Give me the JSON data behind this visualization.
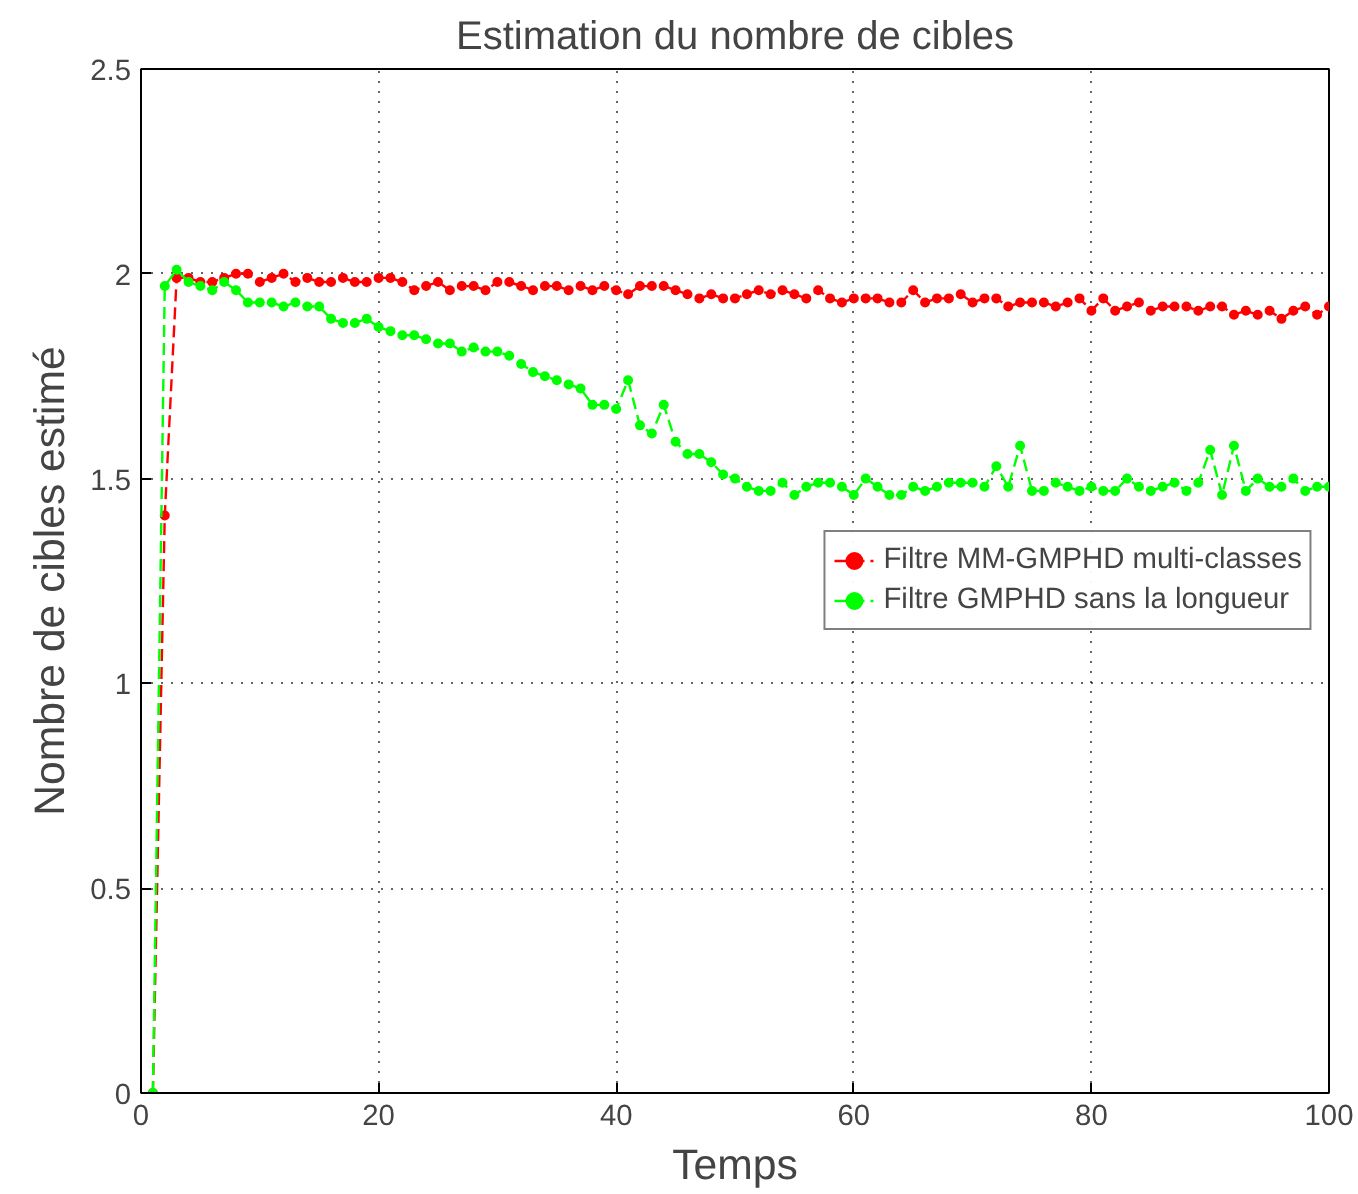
{
  "chart_data": {
    "type": "line",
    "title": "Estimation du nombre de cibles",
    "xlabel": "Temps",
    "ylabel": "Nombre de cibles estimé",
    "x": [
      1,
      2,
      3,
      4,
      5,
      6,
      7,
      8,
      9,
      10,
      11,
      12,
      13,
      14,
      15,
      16,
      17,
      18,
      19,
      20,
      21,
      22,
      23,
      24,
      25,
      26,
      27,
      28,
      29,
      30,
      31,
      32,
      33,
      34,
      35,
      36,
      37,
      38,
      39,
      40,
      41,
      42,
      43,
      44,
      45,
      46,
      47,
      48,
      49,
      50,
      51,
      52,
      53,
      54,
      55,
      56,
      57,
      58,
      59,
      60,
      61,
      62,
      63,
      64,
      65,
      66,
      67,
      68,
      69,
      70,
      71,
      72,
      73,
      74,
      75,
      76,
      77,
      78,
      79,
      80,
      81,
      82,
      83,
      84,
      85,
      86,
      87,
      88,
      89,
      90,
      91,
      92,
      93,
      94,
      95,
      96,
      97,
      98,
      99,
      100
    ],
    "series": [
      {
        "name": "Filtre MM-GMPHD multi-classes",
        "color": "#ff0000",
        "values": [
          0,
          1.41,
          1.99,
          1.99,
          1.98,
          1.98,
          1.99,
          2.0,
          2.0,
          1.98,
          1.99,
          2.0,
          1.98,
          1.99,
          1.98,
          1.98,
          1.99,
          1.98,
          1.98,
          1.99,
          1.99,
          1.98,
          1.96,
          1.97,
          1.98,
          1.96,
          1.97,
          1.97,
          1.96,
          1.98,
          1.98,
          1.97,
          1.96,
          1.97,
          1.97,
          1.96,
          1.97,
          1.96,
          1.97,
          1.96,
          1.95,
          1.97,
          1.97,
          1.97,
          1.96,
          1.95,
          1.94,
          1.95,
          1.94,
          1.94,
          1.95,
          1.96,
          1.95,
          1.96,
          1.95,
          1.94,
          1.96,
          1.94,
          1.93,
          1.94,
          1.94,
          1.94,
          1.93,
          1.93,
          1.96,
          1.93,
          1.94,
          1.94,
          1.95,
          1.93,
          1.94,
          1.94,
          1.92,
          1.93,
          1.93,
          1.93,
          1.92,
          1.93,
          1.94,
          1.91,
          1.94,
          1.91,
          1.92,
          1.93,
          1.91,
          1.92,
          1.92,
          1.92,
          1.91,
          1.92,
          1.92,
          1.9,
          1.91,
          1.9,
          1.91,
          1.89,
          1.91,
          1.92,
          1.9,
          1.92
        ]
      },
      {
        "name": "Filtre GMPHD sans la longueur",
        "color": "#00ff00",
        "values": [
          0,
          1.97,
          2.01,
          1.98,
          1.97,
          1.96,
          1.98,
          1.96,
          1.93,
          1.93,
          1.93,
          1.92,
          1.93,
          1.92,
          1.92,
          1.89,
          1.88,
          1.88,
          1.89,
          1.87,
          1.86,
          1.85,
          1.85,
          1.84,
          1.83,
          1.83,
          1.81,
          1.82,
          1.81,
          1.81,
          1.8,
          1.78,
          1.76,
          1.75,
          1.74,
          1.73,
          1.72,
          1.68,
          1.68,
          1.67,
          1.74,
          1.63,
          1.61,
          1.68,
          1.59,
          1.56,
          1.56,
          1.54,
          1.51,
          1.5,
          1.48,
          1.47,
          1.47,
          1.49,
          1.46,
          1.48,
          1.49,
          1.49,
          1.48,
          1.46,
          1.5,
          1.48,
          1.46,
          1.46,
          1.48,
          1.47,
          1.48,
          1.49,
          1.49,
          1.49,
          1.48,
          1.53,
          1.48,
          1.58,
          1.47,
          1.47,
          1.49,
          1.48,
          1.47,
          1.48,
          1.47,
          1.47,
          1.5,
          1.48,
          1.47,
          1.48,
          1.49,
          1.47,
          1.49,
          1.57,
          1.46,
          1.58,
          1.47,
          1.5,
          1.48,
          1.48,
          1.5,
          1.47,
          1.48,
          1.48
        ]
      }
    ],
    "xlim": [
      0,
      100
    ],
    "ylim": [
      0,
      2.5
    ],
    "xticks": [
      0,
      20,
      40,
      60,
      80,
      100
    ],
    "yticks": [
      0,
      0.5,
      1,
      1.5,
      2,
      2.5
    ],
    "grid": true,
    "legend": "right",
    "marker": "circle",
    "line_style": "dashed"
  }
}
